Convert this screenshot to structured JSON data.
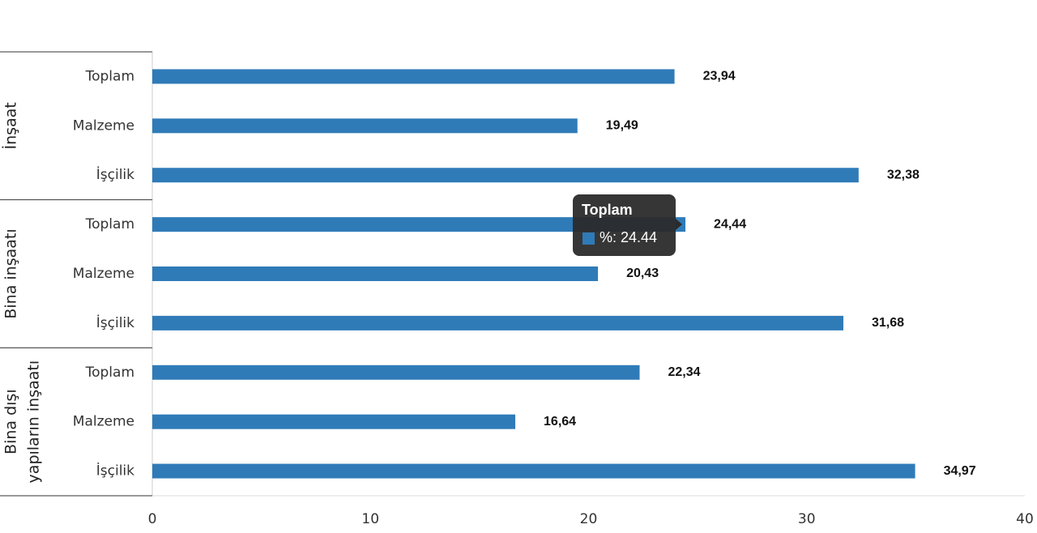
{
  "chart_data": {
    "type": "bar",
    "orientation": "horizontal",
    "groups": [
      [
        "İnşaat"
      ],
      [
        "Bina inşaatı"
      ],
      [
        "Bina dışı",
        "yapıların inşaatı"
      ]
    ],
    "categories": [
      "Toplam",
      "Malzeme",
      "İşçilik",
      "Toplam",
      "Malzeme",
      "İşçilik",
      "Toplam",
      "Malzeme",
      "İşçilik"
    ],
    "series_name": "%",
    "values": [
      23.94,
      19.49,
      32.38,
      24.44,
      20.43,
      31.68,
      22.34,
      16.64,
      34.97
    ],
    "value_labels": [
      "23,94",
      "19,49",
      "32,38",
      "24,44",
      "20,43",
      "31,68",
      "22,34",
      "16,64",
      "34,97"
    ],
    "color": "#2f7bb8",
    "xlim": [
      0,
      40
    ],
    "xticks": [
      0,
      10,
      20,
      30,
      40
    ],
    "grid": false,
    "tooltip": {
      "title": "Toplam",
      "text": "%: 24.44"
    }
  }
}
